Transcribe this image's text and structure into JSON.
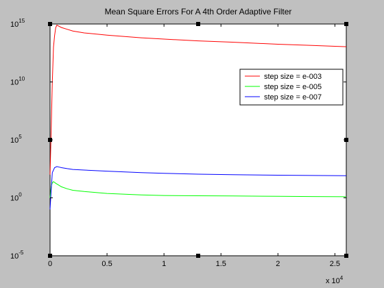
{
  "chart_data": {
    "type": "line",
    "title": "Mean Square Errors For A 4th Order  Adaptive Filter",
    "xlabel": "",
    "ylabel": "",
    "x_scale_label": {
      "base": "x 10",
      "exp": "4"
    },
    "xlim": [
      0,
      26000
    ],
    "ylim": [
      1e-05,
      1000000000000000.0
    ],
    "yscale": "log",
    "x_ticks": [
      {
        "value": 0,
        "label": "0"
      },
      {
        "value": 5000,
        "label": "0.5"
      },
      {
        "value": 10000,
        "label": "1"
      },
      {
        "value": 15000,
        "label": "1.5"
      },
      {
        "value": 20000,
        "label": "2"
      },
      {
        "value": 25000,
        "label": "2.5"
      }
    ],
    "y_ticks": [
      {
        "value": 1e-05,
        "base": "10",
        "exp": "-5"
      },
      {
        "value": 1,
        "base": "10",
        "exp": "0"
      },
      {
        "value": 100000.0,
        "base": "10",
        "exp": "5"
      },
      {
        "value": 10000000000.0,
        "base": "10",
        "exp": "10"
      },
      {
        "value": 1000000000000000.0,
        "base": "10",
        "exp": "15"
      }
    ],
    "grid": false,
    "legend_position": "top-right",
    "series": [
      {
        "name": "step size = e-003",
        "color": "#ff0000",
        "x": [
          0,
          100,
          200,
          300,
          400,
          500,
          600,
          700,
          1000,
          1500,
          2000,
          3000,
          5000,
          8000,
          10000,
          13000,
          16000,
          20000,
          23000,
          26000
        ],
        "y": [
          100,
          1000000.0,
          10000000000.0,
          10000000000000.0,
          100000000000000.0,
          500000000000000.0,
          800000000000000.0,
          700000000000000.0,
          500000000000000.0,
          350000000000000.0,
          250000000000000.0,
          170000000000000.0,
          110000000000000.0,
          65000000000000.0,
          50000000000000.0,
          35000000000000.0,
          27000000000000.0,
          18000000000000.0,
          14000000000000.0,
          11000000000000.0
        ]
      },
      {
        "name": "step size = e-005",
        "color": "#00ff00",
        "x": [
          0,
          100,
          200,
          300,
          500,
          1000,
          1500,
          2000,
          3000,
          5000,
          8000,
          10000,
          13000,
          16000,
          20000,
          23000,
          26000
        ],
        "y": [
          1,
          10,
          20,
          25,
          18,
          9,
          6,
          4.5,
          3.5,
          2.4,
          1.8,
          1.6,
          1.5,
          1.45,
          1.35,
          1.3,
          1.25
        ]
      },
      {
        "name": "step size = e-007",
        "color": "#0000ff",
        "x": [
          0,
          100,
          200,
          400,
          600,
          800,
          1000,
          1500,
          2000,
          3000,
          5000,
          8000,
          10000,
          13000,
          16000,
          20000,
          23000,
          26000
        ],
        "y": [
          0.1,
          5,
          150,
          400,
          500,
          450,
          400,
          330,
          280,
          250,
          200,
          150,
          130,
          110,
          100,
          90,
          85,
          80
        ]
      }
    ]
  }
}
